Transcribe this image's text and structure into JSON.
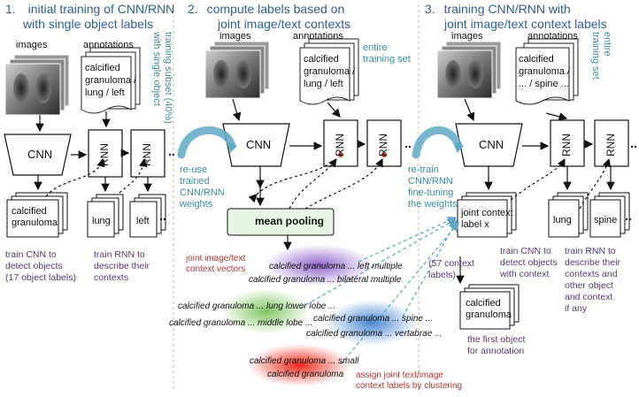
{
  "steps": {
    "s1": {
      "number": "1.",
      "title_line1": "initial training of CNN/RNN",
      "title_line2": "with single object labels"
    },
    "s2": {
      "number": "2.",
      "title_line1": "compute labels based on",
      "title_line2": "joint image/text contexts"
    },
    "s3": {
      "number": "3.",
      "title_line1": "training CNN/RNN with",
      "title_line2": "joint image/text context labels"
    }
  },
  "labels": {
    "images": "images",
    "annotations": "annotations",
    "cnn": "CNN",
    "rnn": "RNN",
    "ellipsis": "..",
    "mean_pooling": "mean pooling"
  },
  "annotation_text": {
    "s1": [
      "calcified",
      "granuloma /",
      "lung / left"
    ],
    "s2": [
      "calcified",
      "granuloma /",
      "lung / left"
    ],
    "s3": [
      "calcified",
      "granuloma /",
      "... / spine ..."
    ]
  },
  "side_notes": {
    "training_subset_line1": "training subset (40%)",
    "training_subset_line2": "with single object",
    "entire_line1": "entire",
    "entire_line2": "training set",
    "entire3_line1": "entire",
    "entire3_line2": "training set"
  },
  "reuse": [
    "re-use",
    "trained",
    "CNN/RNN",
    "weights"
  ],
  "retrain": [
    "re-train",
    "CNN/RNN",
    "fine-tuning",
    "the weights"
  ],
  "s1_outputs": {
    "cnn_out": [
      "calcified",
      "granuloma"
    ],
    "rnn_out1": "lung",
    "rnn_out2": "left",
    "train_cnn": [
      "train CNN to",
      "detect objects",
      "(17 object labels)"
    ],
    "train_rnn": [
      "train RNN to",
      "describe their",
      "contexts"
    ]
  },
  "s2_notes": {
    "joint_vectors": [
      "joint image/text",
      "context vectors"
    ],
    "cluster_texts": [
      "calcified granuloma ... left multiple",
      "calcified granuloma ... bilateral multiple",
      "calcified granuloma ... lung lower lobe ...",
      "calcified granuloma ... middle lobe ...",
      "calcified granuloma ... spine ...",
      "calcified granuloma ... vertabrae ...",
      "calcified granuloma ... small",
      "calcified granuloma"
    ],
    "assign": [
      "assign joint text/image",
      "context labels by clustering"
    ]
  },
  "s3_outputs": {
    "joint_label": [
      "joint context",
      "label x"
    ],
    "context_count": [
      "(57 context",
      "labels)"
    ],
    "train_cnn": [
      "train CNN to",
      "detect objects",
      "with context"
    ],
    "cnn_out": [
      "calcified",
      "granuloma"
    ],
    "first_object": [
      "the first object",
      "for annotation"
    ],
    "rnn_out1": "lung",
    "rnn_out2": "spine",
    "train_rnn": [
      "train RNN to",
      "describe their",
      "contexts and",
      "other object",
      "and context",
      "if any"
    ]
  },
  "colors": {
    "title": "#2f5f93",
    "teal": "#3d8aa6",
    "purple": "#5a3577",
    "red": "#b0342c",
    "mean_pool_fill": "#e7f6e4",
    "arrow_blue": "#5fa9c6"
  }
}
